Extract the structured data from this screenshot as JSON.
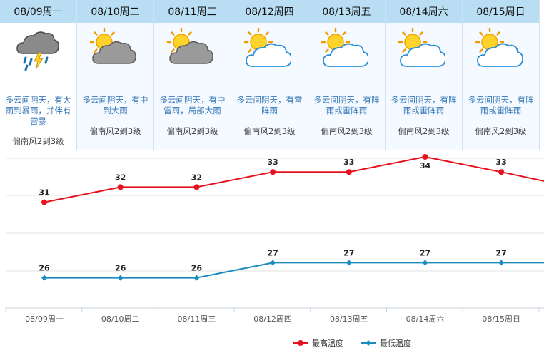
{
  "days": [
    {
      "label": "08/09周一",
      "desc": "多云间阴天，有大雨到暴雨，并伴有雷暴",
      "wind": "偏南风2到3级",
      "icon": "thunderstorm-rain-icon"
    },
    {
      "label": "08/10周二",
      "desc": "多云间阴天，有中到大雨",
      "wind": "偏南风2到3级",
      "icon": "sun-dark-cloud-icon"
    },
    {
      "label": "08/11周三",
      "desc": "多云间阴天，有中雷雨，局部大雨",
      "wind": "偏南风2到3级",
      "icon": "sun-dark-cloud-icon"
    },
    {
      "label": "08/12周四",
      "desc": "多云间阴天，有雷阵雨",
      "wind": "偏南风2到3级",
      "icon": "sun-cloud-icon"
    },
    {
      "label": "08/13周五",
      "desc": "多云间阴天，有阵雨或雷阵雨",
      "wind": "偏南风2到3级",
      "icon": "sun-cloud-icon"
    },
    {
      "label": "08/14周六",
      "desc": "多云间阴天，有阵雨或雷阵雨",
      "wind": "偏南风2到3级",
      "icon": "sun-cloud-icon"
    },
    {
      "label": "08/15周日",
      "desc": "多云间阴天，有阵雨或雷阵雨",
      "wind": "偏南风2到3级",
      "icon": "sun-cloud-icon"
    }
  ],
  "chart_data": {
    "type": "line",
    "categories": [
      "08/09周一",
      "08/10周二",
      "08/11周三",
      "08/12周四",
      "08/13周五",
      "08/14周六",
      "08/15周日"
    ],
    "series": [
      {
        "name": "最高温度",
        "values": [
          31,
          32,
          32,
          33,
          33,
          34,
          33
        ],
        "color": "#e8121f"
      },
      {
        "name": "最低温度",
        "values": [
          26,
          26,
          26,
          27,
          27,
          27,
          27
        ],
        "color": "#1a8cbf"
      }
    ],
    "grid": true,
    "legend_position": "bottom-right"
  },
  "colors": {
    "header_bg": "#b9def4",
    "desc_text": "#3a7ab8",
    "high_line": "#e8121f",
    "low_line": "#1a8cbf"
  }
}
